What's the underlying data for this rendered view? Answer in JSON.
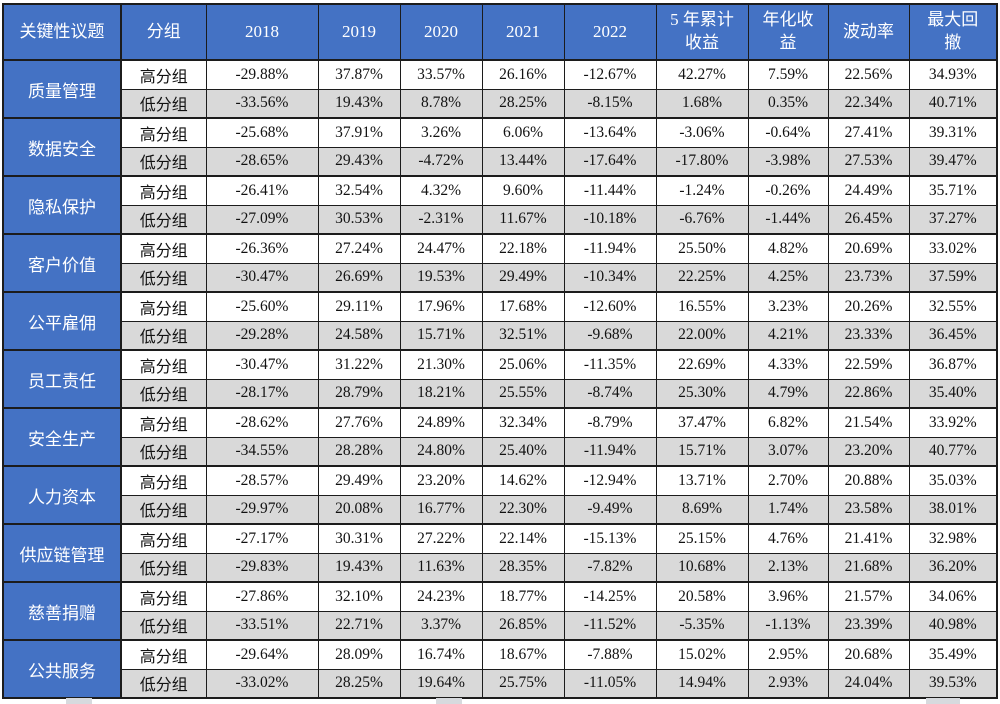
{
  "colors": {
    "accent_blue": "#4472C4",
    "row_alt_gray": "#D9D9D9",
    "border_dark": "#1c1c1c",
    "header_text": "#ffffff",
    "body_text": "#111111"
  },
  "chart_data": {
    "type": "table",
    "columns": [
      "关键性议题",
      "分组",
      "2018",
      "2019",
      "2020",
      "2021",
      "2022",
      "5 年累计\n收益",
      "年化收\n益",
      "波动率",
      "最大回\n撤"
    ],
    "group_labels": [
      "高分组",
      "低分组"
    ],
    "topics": [
      {
        "name": "质量管理",
        "groups": [
          {
            "label": "高分组",
            "values": [
              "-29.88%",
              "37.87%",
              "33.57%",
              "26.16%",
              "-12.67%",
              "42.27%",
              "7.59%",
              "22.56%",
              "34.93%"
            ]
          },
          {
            "label": "低分组",
            "values": [
              "-33.56%",
              "19.43%",
              "8.78%",
              "28.25%",
              "-8.15%",
              "1.68%",
              "0.35%",
              "22.34%",
              "40.71%"
            ]
          }
        ]
      },
      {
        "name": "数据安全",
        "groups": [
          {
            "label": "高分组",
            "values": [
              "-25.68%",
              "37.91%",
              "3.26%",
              "6.06%",
              "-13.64%",
              "-3.06%",
              "-0.64%",
              "27.41%",
              "39.31%"
            ]
          },
          {
            "label": "低分组",
            "values": [
              "-28.65%",
              "29.43%",
              "-4.72%",
              "13.44%",
              "-17.64%",
              "-17.80%",
              "-3.98%",
              "27.53%",
              "39.47%"
            ]
          }
        ]
      },
      {
        "name": "隐私保护",
        "groups": [
          {
            "label": "高分组",
            "values": [
              "-26.41%",
              "32.54%",
              "4.32%",
              "9.60%",
              "-11.44%",
              "-1.24%",
              "-0.26%",
              "24.49%",
              "35.71%"
            ]
          },
          {
            "label": "低分组",
            "values": [
              "-27.09%",
              "30.53%",
              "-2.31%",
              "11.67%",
              "-10.18%",
              "-6.76%",
              "-1.44%",
              "26.45%",
              "37.27%"
            ]
          }
        ]
      },
      {
        "name": "客户价值",
        "groups": [
          {
            "label": "高分组",
            "values": [
              "-26.36%",
              "27.24%",
              "24.47%",
              "22.18%",
              "-11.94%",
              "25.50%",
              "4.82%",
              "20.69%",
              "33.02%"
            ]
          },
          {
            "label": "低分组",
            "values": [
              "-30.47%",
              "26.69%",
              "19.53%",
              "29.49%",
              "-10.34%",
              "22.25%",
              "4.25%",
              "23.73%",
              "37.59%"
            ]
          }
        ]
      },
      {
        "name": "公平雇佣",
        "groups": [
          {
            "label": "高分组",
            "values": [
              "-25.60%",
              "29.11%",
              "17.96%",
              "17.68%",
              "-12.60%",
              "16.55%",
              "3.23%",
              "20.26%",
              "32.55%"
            ]
          },
          {
            "label": "低分组",
            "values": [
              "-29.28%",
              "24.58%",
              "15.71%",
              "32.51%",
              "-9.68%",
              "22.00%",
              "4.21%",
              "23.33%",
              "36.45%"
            ]
          }
        ]
      },
      {
        "name": "员工责任",
        "groups": [
          {
            "label": "高分组",
            "values": [
              "-30.47%",
              "31.22%",
              "21.30%",
              "25.06%",
              "-11.35%",
              "22.69%",
              "4.33%",
              "22.59%",
              "36.87%"
            ]
          },
          {
            "label": "低分组",
            "values": [
              "-28.17%",
              "28.79%",
              "18.21%",
              "25.55%",
              "-8.74%",
              "25.30%",
              "4.79%",
              "22.86%",
              "35.40%"
            ]
          }
        ]
      },
      {
        "name": "安全生产",
        "groups": [
          {
            "label": "高分组",
            "values": [
              "-28.62%",
              "27.76%",
              "24.89%",
              "32.34%",
              "-8.79%",
              "37.47%",
              "6.82%",
              "21.54%",
              "33.92%"
            ]
          },
          {
            "label": "低分组",
            "values": [
              "-34.55%",
              "28.28%",
              "24.80%",
              "25.40%",
              "-11.94%",
              "15.71%",
              "3.07%",
              "23.20%",
              "40.77%"
            ]
          }
        ]
      },
      {
        "name": "人力资本",
        "groups": [
          {
            "label": "高分组",
            "values": [
              "-28.57%",
              "29.49%",
              "23.20%",
              "14.62%",
              "-12.94%",
              "13.71%",
              "2.70%",
              "20.88%",
              "35.03%"
            ]
          },
          {
            "label": "低分组",
            "values": [
              "-29.97%",
              "20.08%",
              "16.77%",
              "22.30%",
              "-9.49%",
              "8.69%",
              "1.74%",
              "23.58%",
              "38.01%"
            ]
          }
        ]
      },
      {
        "name": "供应链管理",
        "groups": [
          {
            "label": "高分组",
            "values": [
              "-27.17%",
              "30.31%",
              "27.22%",
              "22.14%",
              "-15.13%",
              "25.15%",
              "4.76%",
              "21.41%",
              "32.98%"
            ]
          },
          {
            "label": "低分组",
            "values": [
              "-29.83%",
              "19.43%",
              "11.63%",
              "28.35%",
              "-7.82%",
              "10.68%",
              "2.13%",
              "21.68%",
              "36.20%"
            ]
          }
        ]
      },
      {
        "name": "慈善捐赠",
        "groups": [
          {
            "label": "高分组",
            "values": [
              "-27.86%",
              "32.10%",
              "24.23%",
              "18.77%",
              "-14.25%",
              "20.58%",
              "3.96%",
              "21.57%",
              "34.06%"
            ]
          },
          {
            "label": "低分组",
            "values": [
              "-33.51%",
              "22.71%",
              "3.37%",
              "26.85%",
              "-11.52%",
              "-5.35%",
              "-1.13%",
              "23.39%",
              "40.98%"
            ]
          }
        ]
      },
      {
        "name": "公共服务",
        "groups": [
          {
            "label": "高分组",
            "values": [
              "-29.64%",
              "28.09%",
              "16.74%",
              "18.67%",
              "-7.88%",
              "15.02%",
              "2.95%",
              "20.68%",
              "35.49%"
            ]
          },
          {
            "label": "低分组",
            "values": [
              "-33.02%",
              "28.25%",
              "19.64%",
              "25.75%",
              "-11.05%",
              "14.94%",
              "2.93%",
              "24.04%",
              "39.53%"
            ]
          }
        ]
      }
    ]
  }
}
